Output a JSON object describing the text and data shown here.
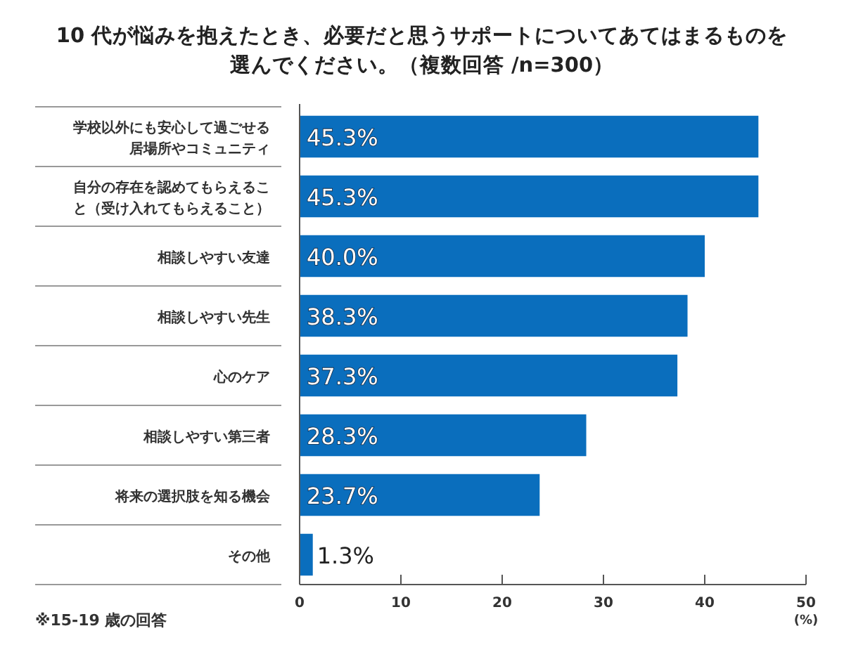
{
  "chart_data": {
    "type": "bar",
    "orientation": "horizontal",
    "title": "10 代が悩みを抱えたとき、必要だと思うサポートについてあてはまるものを選んでください。（複数回答 /n=300）",
    "categories": [
      "学校以外にも安心して過ごせる居場所やコミュニティ",
      "自分の存在を認めてもらえること（受け入れてもらえること）",
      "相談しやすい友達",
      "相談しやすい先生",
      "心のケア",
      "相談しやすい第三者",
      "将来の選択肢を知る機会",
      "その他"
    ],
    "values": [
      45.3,
      45.3,
      40.0,
      38.3,
      37.3,
      28.3,
      23.7,
      1.3
    ],
    "value_labels": [
      "45.3%",
      "45.3%",
      "40.0%",
      "38.3%",
      "37.3%",
      "28.3%",
      "23.7%",
      "1.3%"
    ],
    "color": "#0a6ebd",
    "xlim": [
      0,
      50
    ],
    "xticks": [
      0,
      10,
      20,
      30,
      40,
      50
    ],
    "xlabel": "(%)",
    "annotations": [
      "※15-19 歳の回答"
    ]
  }
}
